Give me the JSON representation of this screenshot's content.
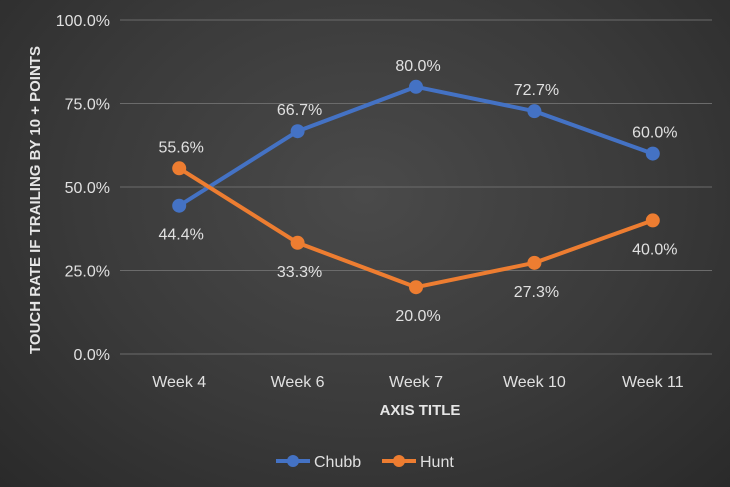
{
  "chart_data": {
    "type": "line",
    "categories": [
      "Week 4",
      "Week 6",
      "Week 7",
      "Week 10",
      "Week 11"
    ],
    "series": [
      {
        "name": "Chubb",
        "values": [
          44.4,
          66.7,
          80.0,
          72.7,
          60.0
        ],
        "labels": [
          "44.4%",
          "66.7%",
          "80.0%",
          "72.7%",
          "60.0%"
        ],
        "color": "#4472C4"
      },
      {
        "name": "Hunt",
        "values": [
          55.6,
          33.3,
          20.0,
          27.3,
          40.0
        ],
        "labels": [
          "55.6%",
          "33.3%",
          "20.0%",
          "27.3%",
          "40.0%"
        ],
        "color": "#ED7D31"
      }
    ],
    "ylim": [
      0,
      100
    ],
    "yticks": [
      0,
      25,
      50,
      75,
      100
    ],
    "ytick_labels": [
      "0.0%",
      "25.0%",
      "50.0%",
      "75.0%",
      "100.0%"
    ],
    "xlabel": "AXIS TITLE",
    "ylabel": "TOUCH RATE IF TRAILING BY 10 + POINTS",
    "grid": true,
    "legend_position": "bottom"
  }
}
